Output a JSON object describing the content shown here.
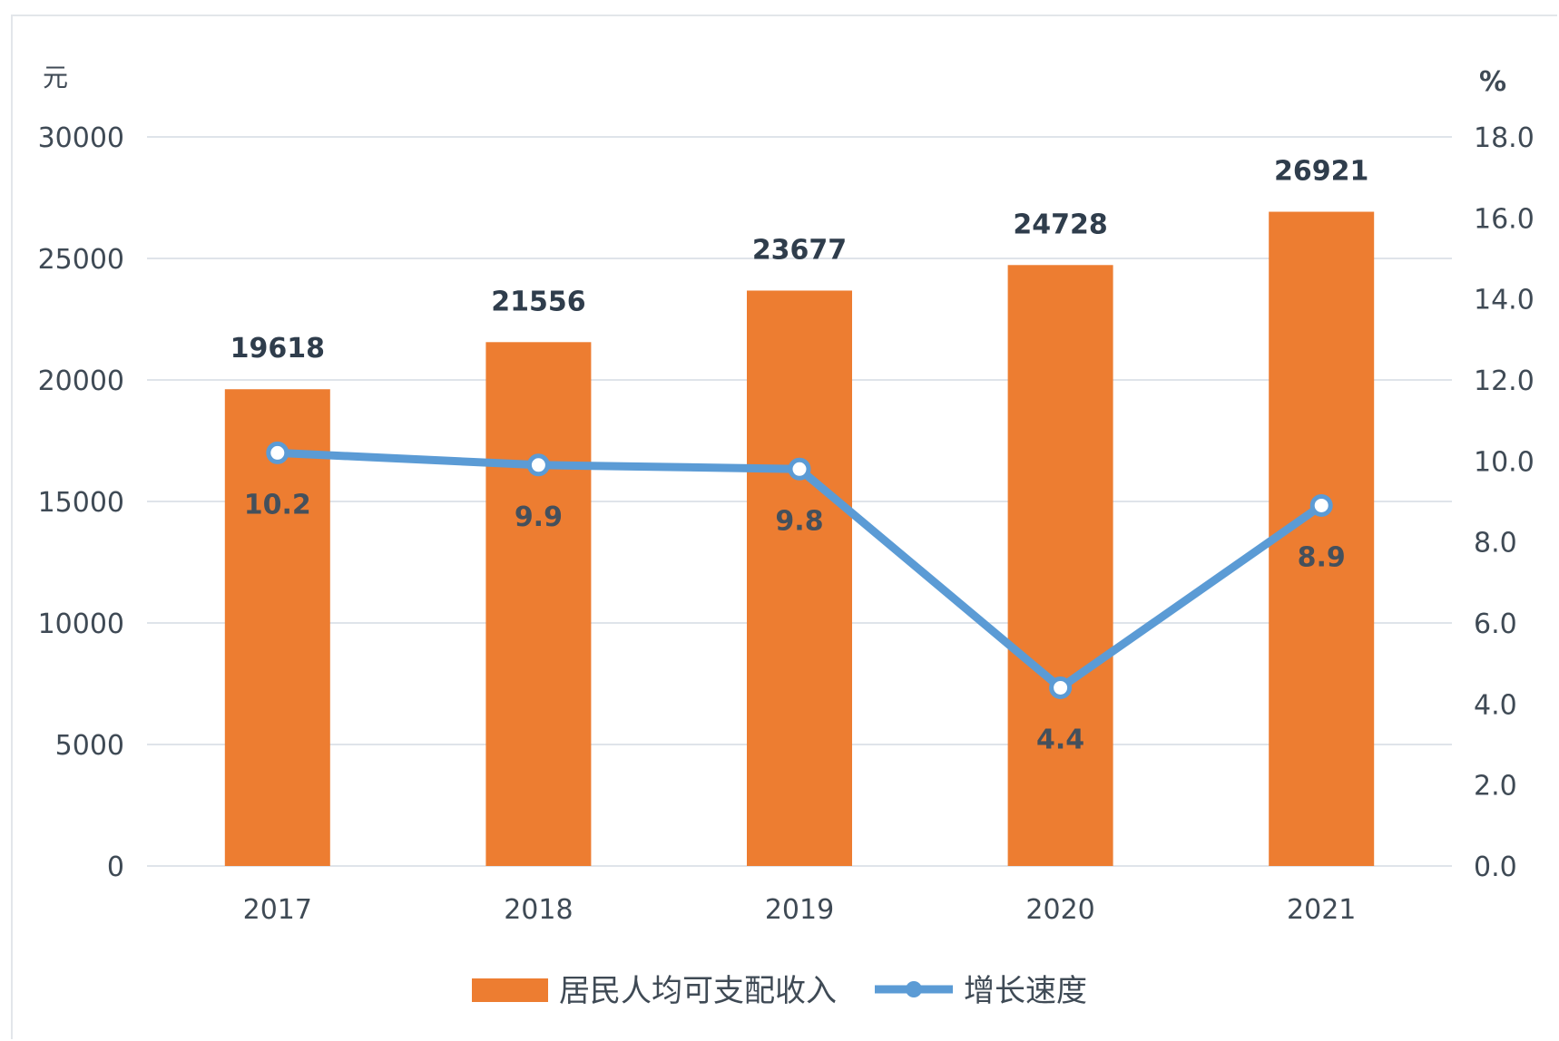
{
  "chart_data": {
    "type": "bar",
    "categories": [
      "2017",
      "2018",
      "2019",
      "2020",
      "2021"
    ],
    "series": [
      {
        "name": "居民人均可支配收入",
        "type": "bar",
        "axis": "left",
        "values": [
          19618,
          21556,
          23677,
          24728,
          26921
        ],
        "color": "#ed7d31"
      },
      {
        "name": "增长速度",
        "type": "line",
        "axis": "right",
        "values": [
          10.2,
          9.9,
          9.8,
          4.4,
          8.9
        ],
        "color": "#5b9bd5"
      }
    ],
    "y_left": {
      "unit": "元",
      "ylim": [
        0,
        30000
      ],
      "ticks": [
        "0",
        "5000",
        "10000",
        "15000",
        "20000",
        "25000",
        "30000"
      ]
    },
    "y_right": {
      "unit": "%",
      "ylim": [
        0,
        18
      ],
      "ticks": [
        "0.0",
        "2.0",
        "4.0",
        "6.0",
        "8.0",
        "10.0",
        "12.0",
        "14.0",
        "16.0",
        "18.0"
      ]
    },
    "grid": true,
    "legend_position": "bottom-center"
  }
}
